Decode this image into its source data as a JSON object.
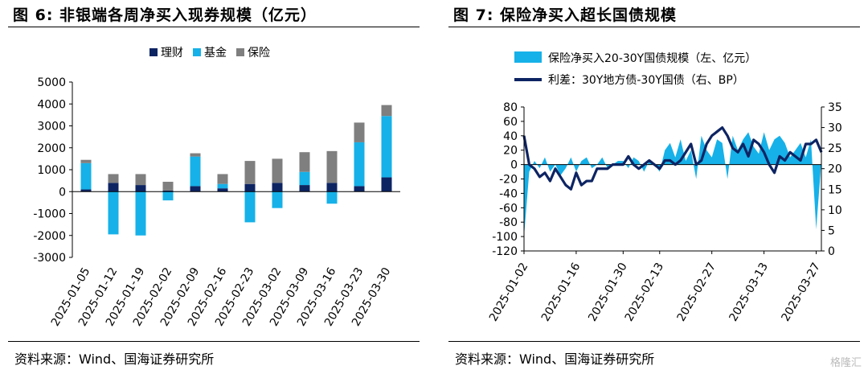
{
  "charts": {
    "left": {
      "title": "图 6:  非银端各周净买入现券规模（亿元）",
      "source": "资料来源：Wind、国海证券研究所"
    },
    "right": {
      "title": "图 7:  保险净买入超长国债规模",
      "source": "资料来源：Wind、国海证券研究所"
    }
  },
  "watermark": "格隆汇",
  "chart_data": [
    {
      "type": "bar",
      "stacked": true,
      "title": "图 6:  非银端各周净买入现券规模（亿元）",
      "categories": [
        "2025-01-05",
        "2025-01-12",
        "2025-01-19",
        "2025-02-02",
        "2025-02-09",
        "2025-02-16",
        "2025-02-23",
        "2025-03-02",
        "2025-03-09",
        "2025-03-16",
        "2025-03-23",
        "2025-03-30"
      ],
      "series": [
        {
          "name": "理财",
          "color": "#0d2463",
          "values": [
            100,
            400,
            300,
            50,
            250,
            150,
            350,
            400,
            300,
            400,
            250,
            650
          ]
        },
        {
          "name": "基金",
          "color": "#16b1e8",
          "values": [
            1200,
            -1950,
            -2000,
            -400,
            1350,
            200,
            -1400,
            -750,
            600,
            -550,
            2000,
            2800
          ]
        },
        {
          "name": "保险",
          "color": "#7f7f7f",
          "values": [
            150,
            400,
            500,
            400,
            150,
            450,
            1050,
            1100,
            900,
            1450,
            900,
            500
          ]
        }
      ],
      "ylim": [
        -3000,
        5000
      ],
      "yticks": [
        -3000,
        -2000,
        -1000,
        0,
        1000,
        2000,
        3000,
        4000,
        5000
      ],
      "legend_position": "top"
    },
    {
      "type": "area",
      "title": "图 7:  保险净买入超长国债规模",
      "x": [
        "2025-01-02",
        "2025-01-03",
        "2025-01-06",
        "2025-01-07",
        "2025-01-08",
        "2025-01-09",
        "2025-01-10",
        "2025-01-13",
        "2025-01-14",
        "2025-01-15",
        "2025-01-16",
        "2025-01-17",
        "2025-01-20",
        "2025-01-21",
        "2025-01-22",
        "2025-01-23",
        "2025-01-24",
        "2025-01-26",
        "2025-01-27",
        "2025-02-05",
        "2025-02-06",
        "2025-02-07",
        "2025-02-08",
        "2025-02-10",
        "2025-02-11",
        "2025-02-12",
        "2025-02-13",
        "2025-02-14",
        "2025-02-17",
        "2025-02-18",
        "2025-02-19",
        "2025-02-20",
        "2025-02-21",
        "2025-02-24",
        "2025-02-25",
        "2025-02-26",
        "2025-02-27",
        "2025-02-28",
        "2025-03-03",
        "2025-03-04",
        "2025-03-05",
        "2025-03-06",
        "2025-03-07",
        "2025-03-10",
        "2025-03-11",
        "2025-03-12",
        "2025-03-13",
        "2025-03-14",
        "2025-03-17",
        "2025-03-18",
        "2025-03-19",
        "2025-03-20",
        "2025-03-21",
        "2025-03-24",
        "2025-03-25",
        "2025-03-26",
        "2025-03-27",
        "2025-03-28"
      ],
      "xticks": [
        "2025-01-02",
        "2025-01-16",
        "2025-01-30",
        "2025-02-13",
        "2025-02-27",
        "2025-03-13",
        "2025-03-27"
      ],
      "series": [
        {
          "name": "保险净买入20-30Y国债规模（左、亿元）",
          "axis": "left",
          "color": "#16b1e8",
          "kind": "area",
          "values": [
            -100,
            -10,
            5,
            -5,
            10,
            -10,
            0,
            -15,
            -5,
            10,
            -10,
            5,
            10,
            -5,
            0,
            10,
            -5,
            0,
            5,
            5,
            -5,
            10,
            5,
            -10,
            5,
            0,
            -10,
            20,
            30,
            10,
            35,
            5,
            20,
            -20,
            40,
            20,
            10,
            35,
            30,
            -20,
            40,
            20,
            35,
            45,
            25,
            15,
            45,
            20,
            35,
            40,
            30,
            10,
            20,
            30,
            10,
            35,
            -90,
            5
          ]
        },
        {
          "name": "利差：30Y地方债-30Y国债（右、BP）",
          "axis": "right",
          "color": "#0d2463",
          "kind": "line",
          "values": [
            28,
            21,
            20,
            18,
            19,
            17,
            20,
            18,
            16,
            15,
            19,
            16,
            17,
            17,
            20,
            20,
            20,
            21,
            21,
            21,
            23,
            21,
            20,
            21,
            22,
            21,
            20,
            22,
            22,
            21,
            22,
            24,
            26,
            21,
            22,
            26,
            28,
            29,
            30,
            28,
            25,
            24,
            26,
            23,
            27,
            26,
            24,
            21,
            19,
            23,
            22,
            24,
            23,
            22,
            26,
            26,
            27,
            24
          ]
        }
      ],
      "ylim_left": [
        -120,
        80
      ],
      "yticks_left": [
        -120,
        -100,
        -80,
        -60,
        -40,
        -20,
        0,
        20,
        40,
        60,
        80
      ],
      "ylim_right": [
        0,
        35
      ],
      "yticks_right": [
        0,
        5,
        10,
        15,
        20,
        25,
        30,
        35
      ],
      "legend_position": "top"
    }
  ]
}
